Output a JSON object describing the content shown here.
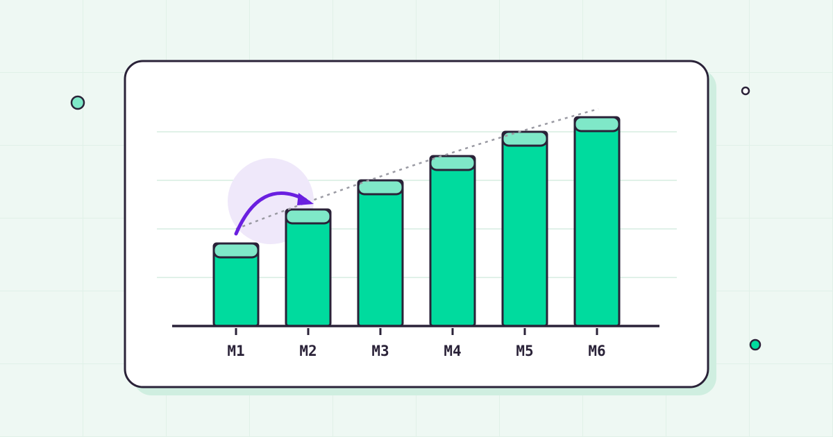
{
  "chart_data": {
    "type": "bar",
    "categories": [
      "M1",
      "M2",
      "M3",
      "M4",
      "M5",
      "M6"
    ],
    "values": [
      1.7,
      2.4,
      3.0,
      3.5,
      4.0,
      4.3
    ],
    "color": "#00db9e",
    "cap_color": "#7fe8c8",
    "ylim": [
      0,
      4.5
    ],
    "yticks": [
      1,
      2,
      3,
      4
    ],
    "grid": true
  }
}
